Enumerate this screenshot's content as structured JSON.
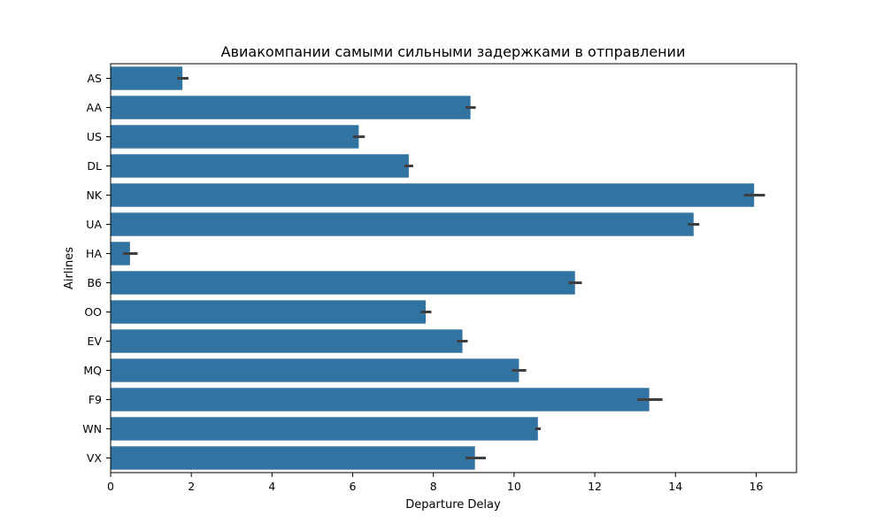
{
  "chart_data": {
    "type": "bar",
    "orientation": "horizontal",
    "title": "Авиакомпании самыми сильными задержками в отправлении",
    "xlabel": "Departure Delay",
    "ylabel": "Airlines",
    "xlim": [
      0,
      17
    ],
    "x_ticks": [
      0,
      2,
      4,
      6,
      8,
      10,
      12,
      14,
      16
    ],
    "grid": false,
    "bar_color": "#3274a1",
    "error_bar_color": "#3f3f3f",
    "categories": [
      "AS",
      "AA",
      "US",
      "DL",
      "NK",
      "UA",
      "HA",
      "B6",
      "OO",
      "EV",
      "MQ",
      "F9",
      "WN",
      "VX"
    ],
    "values": [
      1.78,
      8.92,
      6.15,
      7.39,
      15.95,
      14.45,
      0.48,
      11.51,
      7.81,
      8.72,
      10.12,
      13.35,
      10.59,
      9.03
    ],
    "error_bars": [
      [
        1.65,
        1.93
      ],
      [
        8.8,
        9.05
      ],
      [
        6.01,
        6.3
      ],
      [
        7.28,
        7.5
      ],
      [
        15.7,
        16.22
      ],
      [
        14.31,
        14.59
      ],
      [
        0.31,
        0.67
      ],
      [
        11.35,
        11.68
      ],
      [
        7.68,
        7.95
      ],
      [
        8.59,
        8.85
      ],
      [
        9.95,
        10.3
      ],
      [
        13.05,
        13.68
      ],
      [
        10.52,
        10.66
      ],
      [
        8.8,
        9.3
      ]
    ]
  }
}
